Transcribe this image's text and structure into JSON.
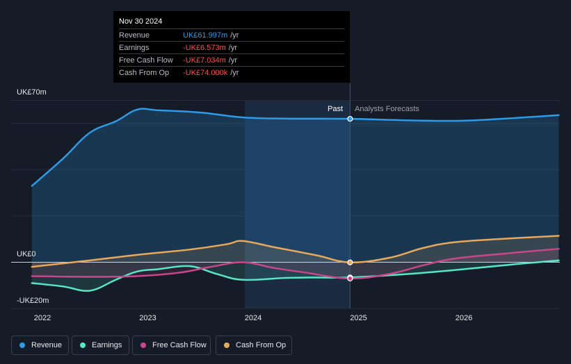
{
  "chart_data": {
    "type": "line",
    "unit_prefix": "UK£",
    "y_axis": {
      "top_label": "UK£70m",
      "zero_label": "UK£0",
      "bottom_label": "-UK£20m",
      "ylim": [
        -20,
        70
      ]
    },
    "x_axis": {
      "tick_labels": [
        "2022",
        "2023",
        "2024",
        "2025",
        "2026"
      ],
      "xlim": [
        2021.9,
        2026.9
      ]
    },
    "periods": {
      "past_label": "Past",
      "forecast_label": "Analysts Forecasts",
      "split_x": 2024.92,
      "highlight_start_x": 2023.92
    },
    "series": [
      {
        "name": "Revenue",
        "color": "#2e9be8",
        "points": [
          [
            2021.9,
            33
          ],
          [
            2022.2,
            45
          ],
          [
            2022.45,
            56
          ],
          [
            2022.7,
            61
          ],
          [
            2022.9,
            66
          ],
          [
            2023.1,
            65.7
          ],
          [
            2023.5,
            64.7
          ],
          [
            2023.9,
            62.6
          ],
          [
            2024.3,
            62.1
          ],
          [
            2024.92,
            61.997
          ],
          [
            2025.5,
            61.3
          ],
          [
            2026.0,
            61.2
          ],
          [
            2026.5,
            62.4
          ],
          [
            2026.9,
            63.6
          ]
        ]
      },
      {
        "name": "Earnings",
        "color": "#58e6c9",
        "points": [
          [
            2021.9,
            -9
          ],
          [
            2022.2,
            -10.5
          ],
          [
            2022.45,
            -12.3
          ],
          [
            2022.7,
            -7.5
          ],
          [
            2022.9,
            -4
          ],
          [
            2023.1,
            -3
          ],
          [
            2023.4,
            -1.7
          ],
          [
            2023.65,
            -5
          ],
          [
            2023.9,
            -7.6
          ],
          [
            2024.3,
            -6.8
          ],
          [
            2024.6,
            -6.6
          ],
          [
            2024.92,
            -6.573
          ],
          [
            2025.5,
            -5
          ],
          [
            2026.0,
            -3
          ],
          [
            2026.5,
            -0.8
          ],
          [
            2026.9,
            0.8
          ]
        ]
      },
      {
        "name": "Free Cash Flow",
        "color": "#c8468a",
        "points": [
          [
            2021.9,
            -6
          ],
          [
            2022.45,
            -6.3
          ],
          [
            2022.9,
            -6
          ],
          [
            2023.3,
            -4.5
          ],
          [
            2023.6,
            -2
          ],
          [
            2023.9,
            0
          ],
          [
            2024.2,
            -2.5
          ],
          [
            2024.5,
            -4.5
          ],
          [
            2024.92,
            -7.034
          ],
          [
            2025.3,
            -5
          ],
          [
            2025.6,
            -1.5
          ],
          [
            2025.9,
            1.5
          ],
          [
            2026.4,
            3.8
          ],
          [
            2026.9,
            5.8
          ]
        ]
      },
      {
        "name": "Cash From Op",
        "color": "#e8a85c",
        "points": [
          [
            2021.9,
            -2
          ],
          [
            2022.45,
            0.8
          ],
          [
            2022.9,
            3.2
          ],
          [
            2023.4,
            5.5
          ],
          [
            2023.75,
            7.8
          ],
          [
            2023.9,
            9.2
          ],
          [
            2024.2,
            6.5
          ],
          [
            2024.6,
            3
          ],
          [
            2024.92,
            -0.074
          ],
          [
            2025.3,
            2
          ],
          [
            2025.6,
            6
          ],
          [
            2025.9,
            8.6
          ],
          [
            2026.4,
            10.2
          ],
          [
            2026.9,
            11.4
          ]
        ]
      }
    ]
  },
  "tooltip": {
    "date": "Nov 30 2024",
    "rows": [
      {
        "label": "Revenue",
        "value": "UK£61.997m",
        "unit": "/yr",
        "color": "#2e9be8"
      },
      {
        "label": "Earnings",
        "value": "-UK£6.573m",
        "unit": "/yr",
        "color": "#ff4c4c"
      },
      {
        "label": "Free Cash Flow",
        "value": "-UK£7.034m",
        "unit": "/yr",
        "color": "#ff4c4c"
      },
      {
        "label": "Cash From Op",
        "value": "-UK£74.000k",
        "unit": "/yr",
        "color": "#ff4c4c"
      }
    ]
  },
  "legend": [
    {
      "label": "Revenue",
      "color": "#2e9be8"
    },
    {
      "label": "Earnings",
      "color": "#58e6c9"
    },
    {
      "label": "Free Cash Flow",
      "color": "#c8468a"
    },
    {
      "label": "Cash From Op",
      "color": "#e8a85c"
    }
  ]
}
